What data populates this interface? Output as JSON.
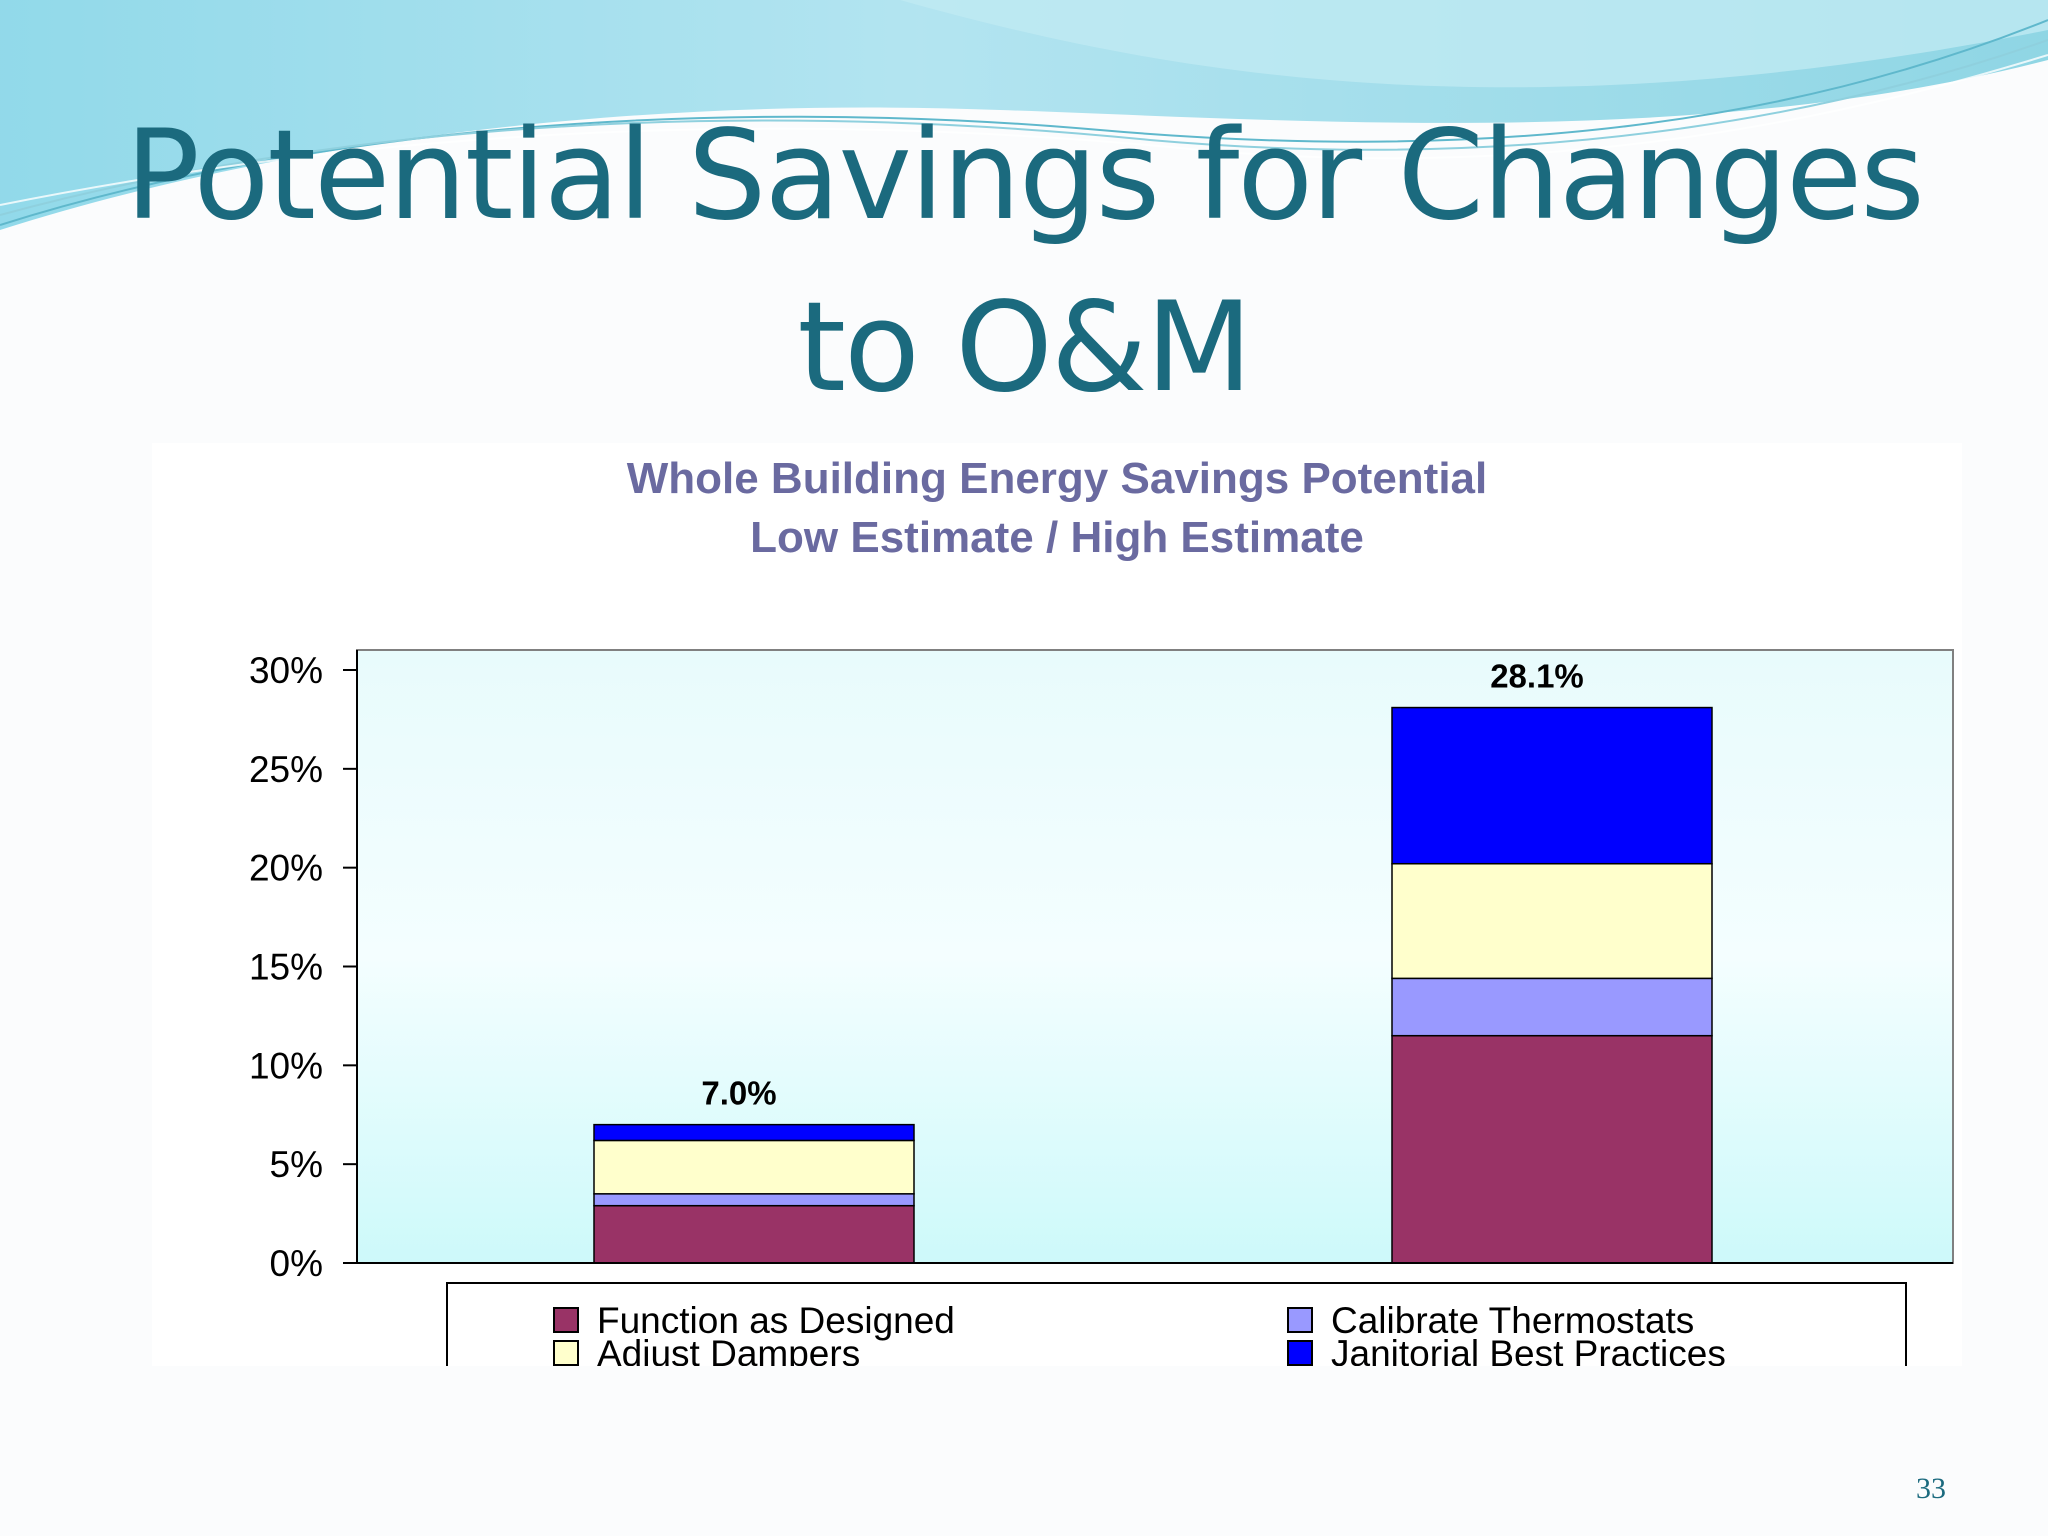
{
  "slide": {
    "title_line1": "Potential Savings for Changes",
    "title_line2": "to O&M",
    "page_number": "33"
  },
  "colors": {
    "title": "#1b6a7e",
    "chart_title": "#6a6aa0",
    "plot_bg_top": "#e8fbfc",
    "plot_bg_bottom": "#cdf9fa"
  },
  "chart_data": {
    "type": "bar",
    "stacked": true,
    "title": "Whole Building Energy Savings Potential",
    "subtitle": "Low Estimate / High Estimate",
    "xlabel": "",
    "ylabel": "",
    "ylim": [
      0,
      30
    ],
    "yticks": [
      "0%",
      "5%",
      "10%",
      "15%",
      "20%",
      "25%",
      "30%"
    ],
    "categories": [
      "Low Estimate",
      "High Estimate"
    ],
    "totals": [
      "7.0%",
      "28.1%"
    ],
    "series": [
      {
        "name": "Function as Designed",
        "color": "#993366",
        "values": [
          2.9,
          11.5
        ]
      },
      {
        "name": "Calibrate Thermostats",
        "color": "#9999ff",
        "values": [
          0.6,
          2.9
        ]
      },
      {
        "name": "Adjust Dampers",
        "color": "#ffffcc",
        "values": [
          2.7,
          5.8
        ]
      },
      {
        "name": "Janitorial Best Practices",
        "color": "#0000ff",
        "values": [
          0.8,
          7.9
        ]
      }
    ],
    "legend_order": [
      0,
      1,
      2,
      3
    ],
    "legend_position": "bottom",
    "grid": false
  }
}
